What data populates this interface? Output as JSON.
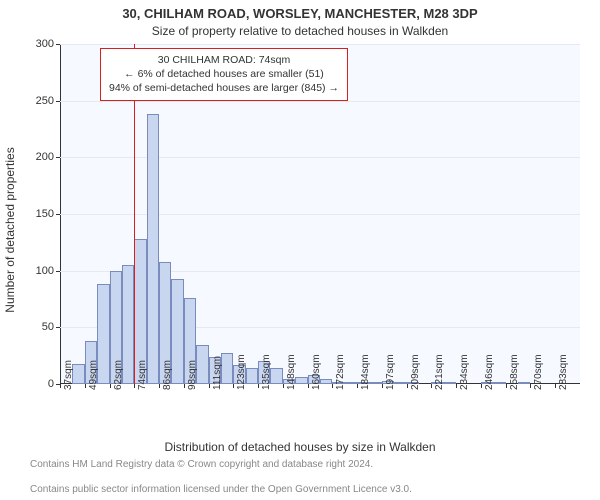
{
  "title_line1": "30, CHILHAM ROAD, WORSLEY, MANCHESTER, M28 3DP",
  "title_line2": "Size of property relative to detached houses in Walkden",
  "ylabel": "Number of detached properties",
  "xlabel": "Distribution of detached houses by size in Walkden",
  "footer_line1": "Contains HM Land Registry data © Crown copyright and database right 2024.",
  "footer_line2": "Contains public sector information licensed under the Open Government Licence v3.0.",
  "chart": {
    "type": "histogram",
    "background_color": "#f6f9ff",
    "bar_fill": "#c9d6f0",
    "bar_border": "#7a8bbd",
    "grid_color": "#e8e8f0",
    "axis_color": "#333333",
    "ylim": [
      0,
      300
    ],
    "yticks": [
      0,
      50,
      100,
      150,
      200,
      250,
      300
    ],
    "x_tick_labels": [
      "37sqm",
      "49sqm",
      "62sqm",
      "74sqm",
      "86sqm",
      "98sqm",
      "111sqm",
      "123sqm",
      "135sqm",
      "148sqm",
      "160sqm",
      "172sqm",
      "184sqm",
      "197sqm",
      "209sqm",
      "221sqm",
      "234sqm",
      "246sqm",
      "258sqm",
      "270sqm",
      "283sqm"
    ],
    "x_tick_every": 1,
    "values": [
      0,
      18,
      38,
      88,
      100,
      105,
      128,
      238,
      108,
      93,
      76,
      34,
      24,
      27,
      17,
      14,
      20,
      14,
      4,
      6,
      8,
      4,
      2,
      2,
      2,
      2,
      3,
      1,
      1,
      0,
      2,
      1,
      0,
      0,
      1,
      1,
      0,
      1,
      0,
      0,
      0,
      0
    ],
    "refline_index": 6,
    "refline_color": "#d61f1f",
    "callout": {
      "line1": "30 CHILHAM ROAD: 74sqm",
      "line2": "← 6% of detached houses are smaller (51)",
      "line3": "94% of semi-detached houses are larger (845) →",
      "border_color": "#d61f1f",
      "background": "#ffffff"
    },
    "title_fontsize": 13,
    "subtitle_fontsize": 12,
    "label_fontsize": 12,
    "tick_fontsize": 11,
    "xtick_fontsize": 10,
    "xtick_rotation": -90
  }
}
